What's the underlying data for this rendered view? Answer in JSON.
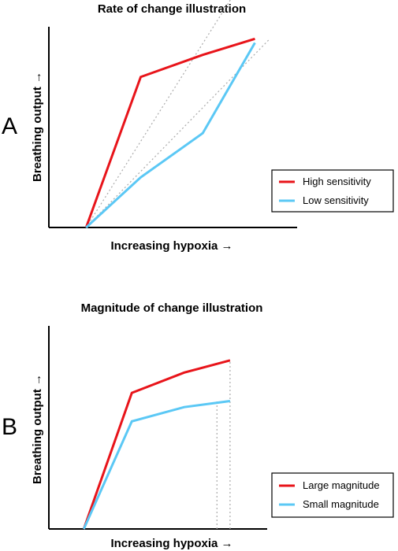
{
  "colors": {
    "high": "#e8141a",
    "low": "#5bc8f5",
    "guide": "#aaaaaa",
    "axis": "#000000"
  },
  "chart_data": [
    {
      "type": "line",
      "panel_letter": "A",
      "title": "Rate of change illustration",
      "xlabel": "Increasing hypoxia →",
      "ylabel": "Breathing output →",
      "xlim": [
        0,
        100
      ],
      "ylim": [
        0,
        100
      ],
      "grid": false,
      "legend_position": "bottom-right",
      "series": [
        {
          "name": "High sensitivity",
          "color": "#e8141a",
          "x": [
            15,
            37,
            62,
            83
          ],
          "y": [
            0,
            75,
            86,
            94
          ]
        },
        {
          "name": "Low sensitivity",
          "color": "#5bc8f5",
          "x": [
            15,
            37,
            62,
            83
          ],
          "y": [
            0,
            25,
            47,
            92
          ]
        }
      ],
      "guides": [
        {
          "x": [
            15,
            76
          ],
          "y": [
            0,
            119
          ]
        },
        {
          "x": [
            15,
            89
          ],
          "y": [
            0,
            94
          ]
        }
      ]
    },
    {
      "type": "line",
      "panel_letter": "B",
      "title": "Magnitude of change illustration",
      "xlabel": "Increasing hypoxia →",
      "ylabel": "Breathing output →",
      "xlim": [
        0,
        100
      ],
      "ylim": [
        0,
        100
      ],
      "grid": false,
      "legend_position": "bottom-right",
      "series": [
        {
          "name": "Large magnitude",
          "color": "#e8141a",
          "x": [
            16,
            38,
            62,
            83
          ],
          "y": [
            0,
            67,
            77,
            83
          ]
        },
        {
          "name": "Small magnitude",
          "color": "#5bc8f5",
          "x": [
            16,
            38,
            62,
            83
          ],
          "y": [
            0,
            53,
            60,
            63
          ]
        }
      ],
      "guides": [
        {
          "x": [
            77,
            77
          ],
          "y": [
            0,
            63
          ]
        },
        {
          "x": [
            83,
            83
          ],
          "y": [
            0,
            83
          ]
        }
      ]
    }
  ]
}
